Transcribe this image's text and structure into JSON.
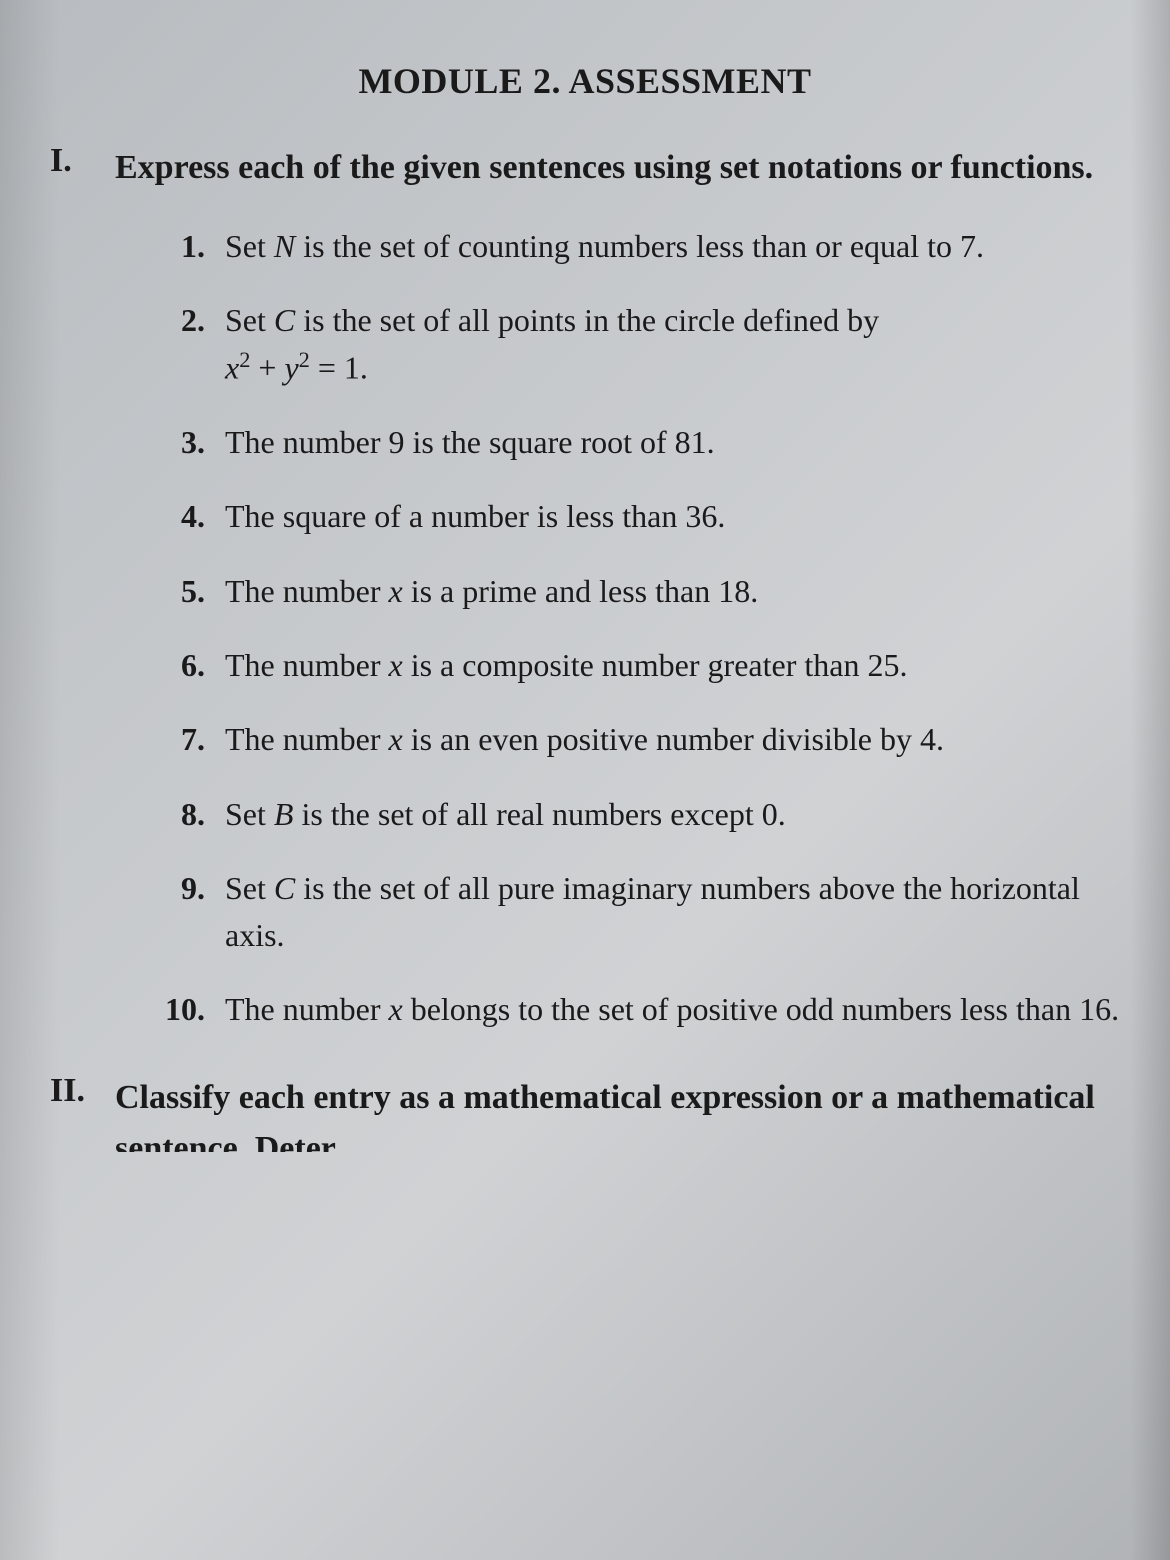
{
  "title": "MODULE 2. ASSESSMENT",
  "section1": {
    "number": "I.",
    "heading": "Express each of the given sentences using set notations or functions.",
    "items": [
      {
        "num": "1.",
        "prefix": "Set ",
        "var": "N",
        "suffix": " is the set of counting numbers less than or equal to 7."
      },
      {
        "num": "2.",
        "prefix": "Set ",
        "var": "C",
        "suffix": " is the set of all points in the circle defined by",
        "equation": "x² + y² = 1."
      },
      {
        "num": "3.",
        "text": "The number 9 is the square root of 81."
      },
      {
        "num": "4.",
        "text": "The square of a number is less than 36."
      },
      {
        "num": "5.",
        "prefix": "The number ",
        "var": "x",
        "suffix": " is a prime and less than 18."
      },
      {
        "num": "6.",
        "prefix": "The number ",
        "var": "x",
        "suffix": " is a composite number greater than 25."
      },
      {
        "num": "7.",
        "prefix": "The number ",
        "var": "x",
        "suffix": " is an even positive number divisible by 4."
      },
      {
        "num": "8.",
        "prefix": "Set ",
        "var": "B",
        "suffix": " is the set of all real numbers except 0."
      },
      {
        "num": "9.",
        "prefix": "Set ",
        "var": "C",
        "suffix": " is the set of all pure imaginary numbers above the horizontal axis."
      },
      {
        "num": "10.",
        "prefix": "The number ",
        "var": "x",
        "suffix": " belongs to the set of positive odd numbers less than 16."
      }
    ]
  },
  "section2": {
    "number": "II.",
    "heading": "Classify each entry as a mathematical expression or a mathematical sentence. Deter"
  },
  "colors": {
    "text": "#1a1a1a",
    "bg_light": "#d0d2d4",
    "bg_dark": "#b0b3b6"
  },
  "typography": {
    "title_size": 36,
    "section_size": 34,
    "body_size": 32,
    "font_family": "Times New Roman"
  }
}
